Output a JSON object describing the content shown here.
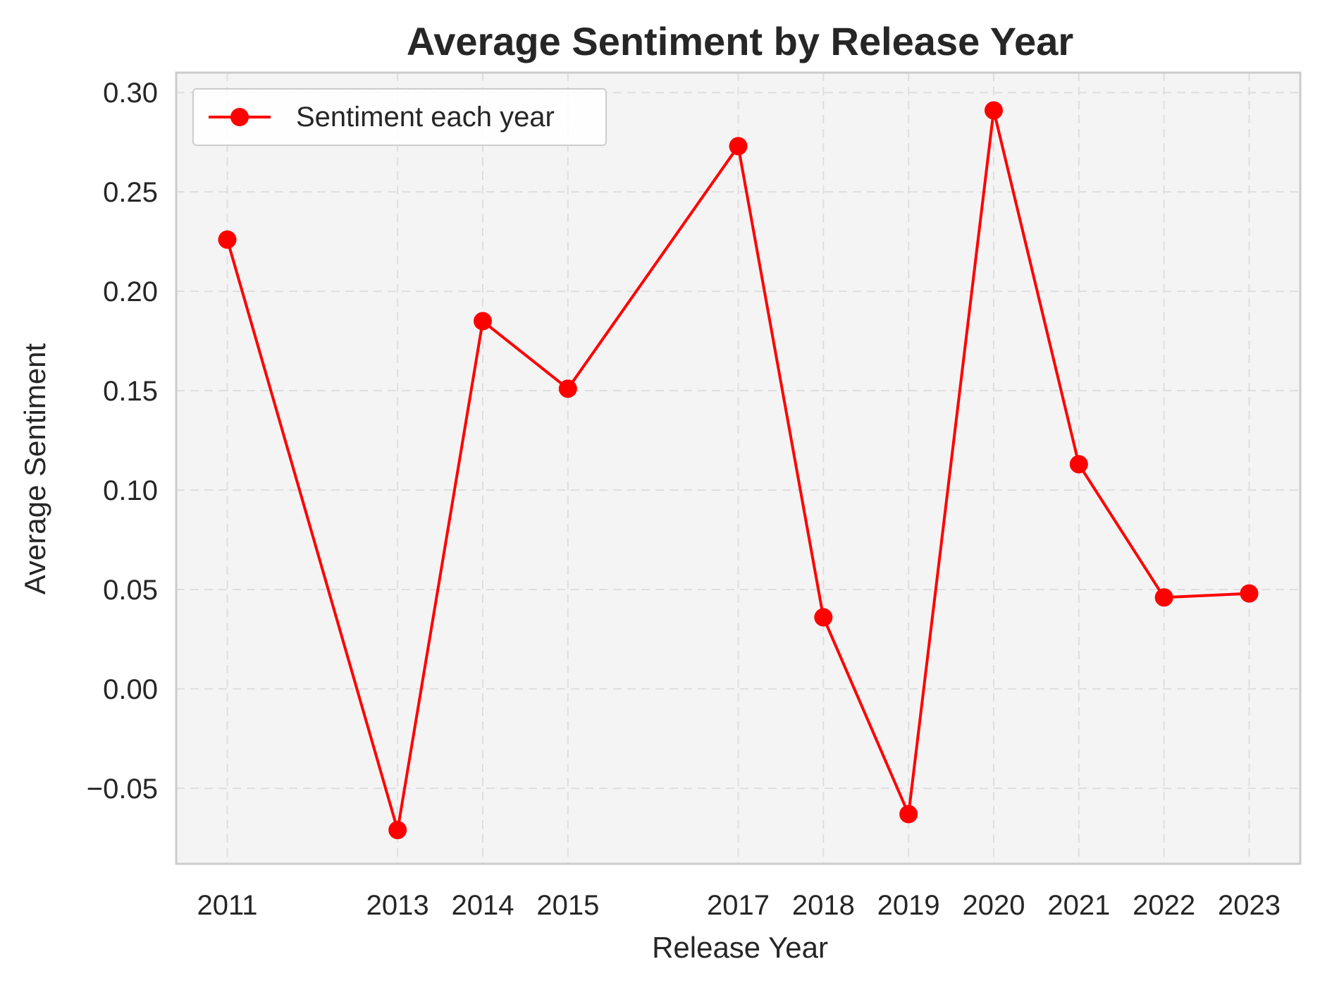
{
  "chart_data": {
    "type": "line",
    "title": "Average Sentiment by Release Year",
    "xlabel": "Release Year",
    "ylabel": "Average Sentiment",
    "x": [
      2011,
      2013,
      2014,
      2015,
      2017,
      2018,
      2019,
      2020,
      2021,
      2022,
      2023
    ],
    "x_tick_labels": [
      "2011",
      "2013",
      "2014",
      "2015",
      "2017",
      "2018",
      "2019",
      "2020",
      "2021",
      "2022",
      "2023"
    ],
    "series": [
      {
        "name": "Sentiment each year",
        "color": "#ff0000",
        "values": [
          0.226,
          -0.071,
          0.185,
          0.151,
          0.273,
          0.036,
          -0.063,
          0.291,
          0.113,
          0.046,
          0.048
        ]
      }
    ],
    "yticks": [
      -0.05,
      0.0,
      0.05,
      0.1,
      0.15,
      0.2,
      0.25,
      0.3
    ],
    "y_tick_labels": [
      "−0.05",
      "0.00",
      "0.05",
      "0.10",
      "0.15",
      "0.20",
      "0.25",
      "0.30"
    ],
    "ylim": [
      -0.088,
      0.31
    ],
    "xlim": [
      2010.4,
      2023.6
    ],
    "grid": true,
    "legend_position": "top-left",
    "colors": {
      "plot_background": "#f4f4f4",
      "grid": "#dedede",
      "spine": "#cccccc",
      "line": "#ff0000"
    }
  }
}
